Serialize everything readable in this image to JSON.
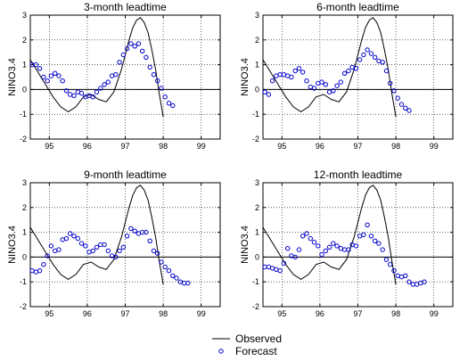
{
  "chart_data": [
    {
      "type": "line",
      "title": "3-month leadtime",
      "ylabel": "NINO3.4",
      "xlim": [
        94.5,
        99.5
      ],
      "ylim": [
        -2,
        3
      ],
      "xticks": [
        95,
        96,
        97,
        98,
        99
      ],
      "yticks": [
        -2,
        -1,
        0,
        1,
        2,
        3
      ],
      "grid": true,
      "series": [
        {
          "name": "Observed",
          "style": "line",
          "x": [
            94.5,
            94.7,
            94.9,
            95.1,
            95.3,
            95.5,
            95.7,
            95.9,
            96.1,
            96.3,
            96.5,
            96.7,
            96.9,
            97.0,
            97.1,
            97.2,
            97.3,
            97.4,
            97.5,
            97.6,
            97.7,
            97.8,
            97.9,
            98.0
          ],
          "y": [
            1.2,
            0.7,
            0.2,
            -0.3,
            -0.7,
            -0.9,
            -0.7,
            -0.3,
            -0.2,
            -0.4,
            -0.5,
            -0.1,
            0.8,
            1.4,
            2.0,
            2.5,
            2.8,
            2.9,
            2.7,
            2.3,
            1.6,
            0.8,
            -0.2,
            -1.1
          ]
        },
        {
          "name": "Forecast",
          "style": "marker",
          "x": [
            94.55,
            94.65,
            94.75,
            94.85,
            94.95,
            95.05,
            95.15,
            95.25,
            95.35,
            95.45,
            95.55,
            95.65,
            95.75,
            95.85,
            95.95,
            96.05,
            96.15,
            96.25,
            96.35,
            96.45,
            96.55,
            96.65,
            96.75,
            96.85,
            96.95,
            97.05,
            97.15,
            97.25,
            97.35,
            97.45,
            97.55,
            97.65,
            97.75,
            97.85,
            97.95,
            98.05,
            98.15,
            98.25
          ],
          "y": [
            1.0,
            1.0,
            0.85,
            0.5,
            0.35,
            0.55,
            0.65,
            0.55,
            0.35,
            -0.05,
            -0.2,
            -0.25,
            -0.1,
            -0.15,
            -0.3,
            -0.25,
            -0.3,
            -0.1,
            0.05,
            0.2,
            0.3,
            0.55,
            0.6,
            1.1,
            1.4,
            1.65,
            1.85,
            1.75,
            1.85,
            1.55,
            1.3,
            0.9,
            0.6,
            0.35,
            0.05,
            -0.3,
            -0.55,
            -0.65
          ]
        }
      ]
    },
    {
      "type": "line",
      "title": "6-month leadtime",
      "ylabel": "NINO3.4",
      "xlim": [
        94.5,
        99.5
      ],
      "ylim": [
        -2,
        3
      ],
      "xticks": [
        95,
        96,
        97,
        98,
        99
      ],
      "yticks": [
        -2,
        -1,
        0,
        1,
        2,
        3
      ],
      "grid": true,
      "series": [
        {
          "name": "Observed",
          "style": "line",
          "x": [
            94.5,
            94.7,
            94.9,
            95.1,
            95.3,
            95.5,
            95.7,
            95.9,
            96.1,
            96.3,
            96.5,
            96.7,
            96.9,
            97.0,
            97.1,
            97.2,
            97.3,
            97.4,
            97.5,
            97.6,
            97.7,
            97.8,
            97.9,
            98.0
          ],
          "y": [
            1.2,
            0.7,
            0.2,
            -0.3,
            -0.7,
            -0.9,
            -0.7,
            -0.3,
            -0.2,
            -0.4,
            -0.5,
            -0.1,
            0.8,
            1.4,
            2.0,
            2.5,
            2.8,
            2.9,
            2.7,
            2.3,
            1.6,
            0.8,
            -0.2,
            -1.1
          ]
        },
        {
          "name": "Forecast",
          "style": "marker",
          "x": [
            94.55,
            94.65,
            94.75,
            94.85,
            94.95,
            95.05,
            95.15,
            95.25,
            95.35,
            95.45,
            95.55,
            95.65,
            95.75,
            95.85,
            95.95,
            96.05,
            96.15,
            96.25,
            96.35,
            96.45,
            96.55,
            96.65,
            96.75,
            96.85,
            96.95,
            97.05,
            97.15,
            97.25,
            97.35,
            97.45,
            97.55,
            97.65,
            97.75,
            97.85,
            97.95,
            98.05,
            98.15,
            98.25,
            98.35
          ],
          "y": [
            -0.1,
            -0.2,
            0.35,
            0.55,
            0.6,
            0.6,
            0.55,
            0.5,
            0.75,
            0.85,
            0.7,
            0.35,
            0.1,
            0.05,
            0.25,
            0.3,
            0.2,
            -0.1,
            -0.05,
            0.15,
            0.3,
            0.65,
            0.75,
            0.9,
            0.85,
            1.2,
            1.4,
            1.6,
            1.45,
            1.3,
            1.15,
            1.1,
            0.75,
            0.25,
            -0.05,
            -0.35,
            -0.6,
            -0.75,
            -0.85
          ]
        }
      ]
    },
    {
      "type": "line",
      "title": "9-month leadtime",
      "ylabel": "NINO3.4",
      "xlim": [
        94.5,
        99.5
      ],
      "ylim": [
        -2,
        3
      ],
      "xticks": [
        95,
        96,
        97,
        98,
        99
      ],
      "yticks": [
        -2,
        -1,
        0,
        1,
        2,
        3
      ],
      "grid": true,
      "series": [
        {
          "name": "Observed",
          "style": "line",
          "x": [
            94.5,
            94.7,
            94.9,
            95.1,
            95.3,
            95.5,
            95.7,
            95.9,
            96.1,
            96.3,
            96.5,
            96.7,
            96.9,
            97.0,
            97.1,
            97.2,
            97.3,
            97.4,
            97.5,
            97.6,
            97.7,
            97.8,
            97.9,
            98.0
          ],
          "y": [
            1.2,
            0.7,
            0.2,
            -0.3,
            -0.7,
            -0.9,
            -0.7,
            -0.3,
            -0.2,
            -0.4,
            -0.5,
            -0.1,
            0.8,
            1.4,
            2.0,
            2.5,
            2.8,
            2.9,
            2.7,
            2.3,
            1.6,
            0.8,
            -0.2,
            -1.1
          ]
        },
        {
          "name": "Forecast",
          "style": "marker",
          "x": [
            94.55,
            94.65,
            94.75,
            94.85,
            94.95,
            95.05,
            95.15,
            95.25,
            95.35,
            95.45,
            95.55,
            95.65,
            95.75,
            95.85,
            95.95,
            96.05,
            96.15,
            96.25,
            96.35,
            96.45,
            96.55,
            96.65,
            96.75,
            96.85,
            96.95,
            97.05,
            97.15,
            97.25,
            97.35,
            97.45,
            97.55,
            97.65,
            97.75,
            97.85,
            97.95,
            98.05,
            98.15,
            98.25,
            98.35,
            98.45,
            98.55,
            98.65
          ],
          "y": [
            -0.55,
            -0.6,
            -0.55,
            -0.3,
            0.05,
            0.45,
            0.25,
            0.3,
            0.7,
            0.75,
            0.95,
            0.85,
            0.75,
            0.55,
            0.45,
            0.2,
            0.25,
            0.4,
            0.5,
            0.5,
            0.25,
            0.05,
            0.0,
            0.25,
            0.4,
            0.85,
            1.15,
            1.05,
            0.95,
            1.0,
            1.0,
            0.65,
            0.25,
            0.15,
            -0.2,
            -0.4,
            -0.55,
            -0.75,
            -0.85,
            -1.0,
            -1.05,
            -1.05
          ]
        }
      ]
    },
    {
      "type": "line",
      "title": "12-month leadtime",
      "ylabel": "NINO3.4",
      "xlim": [
        94.5,
        99.5
      ],
      "ylim": [
        -2,
        3
      ],
      "xticks": [
        95,
        96,
        97,
        98,
        99
      ],
      "yticks": [
        -2,
        -1,
        0,
        1,
        2,
        3
      ],
      "grid": true,
      "series": [
        {
          "name": "Observed",
          "style": "line",
          "x": [
            94.5,
            94.7,
            94.9,
            95.1,
            95.3,
            95.5,
            95.7,
            95.9,
            96.1,
            96.3,
            96.5,
            96.7,
            96.9,
            97.0,
            97.1,
            97.2,
            97.3,
            97.4,
            97.5,
            97.6,
            97.7,
            97.8,
            97.9,
            98.0
          ],
          "y": [
            1.2,
            0.7,
            0.2,
            -0.3,
            -0.7,
            -0.9,
            -0.7,
            -0.3,
            -0.2,
            -0.4,
            -0.5,
            -0.1,
            0.8,
            1.4,
            2.0,
            2.5,
            2.8,
            2.9,
            2.7,
            2.3,
            1.6,
            0.8,
            -0.2,
            -1.1
          ]
        },
        {
          "name": "Forecast",
          "style": "marker",
          "x": [
            94.55,
            94.65,
            94.75,
            94.85,
            94.95,
            95.05,
            95.15,
            95.25,
            95.35,
            95.45,
            95.55,
            95.65,
            95.75,
            95.85,
            95.95,
            96.05,
            96.15,
            96.25,
            96.35,
            96.45,
            96.55,
            96.65,
            96.75,
            96.85,
            96.95,
            97.05,
            97.15,
            97.25,
            97.35,
            97.45,
            97.55,
            97.65,
            97.75,
            97.85,
            97.95,
            98.05,
            98.15,
            98.25,
            98.35,
            98.45,
            98.55,
            98.65,
            98.75
          ],
          "y": [
            -0.4,
            -0.4,
            -0.45,
            -0.5,
            -0.55,
            -0.25,
            0.35,
            0.05,
            0.0,
            0.3,
            0.85,
            0.95,
            0.75,
            0.6,
            0.45,
            0.1,
            0.25,
            0.4,
            0.55,
            0.45,
            0.35,
            0.3,
            0.3,
            0.5,
            0.45,
            0.85,
            0.9,
            1.3,
            0.85,
            0.65,
            0.55,
            0.3,
            -0.1,
            -0.3,
            -0.55,
            -0.75,
            -0.8,
            -0.75,
            -1.0,
            -1.1,
            -1.1,
            -1.05,
            -1.0
          ]
        }
      ]
    }
  ],
  "legend": {
    "observed_label": "Observed",
    "forecast_label": "Forecast"
  },
  "colors": {
    "observed": "#000000",
    "forecast": "#0000cc"
  }
}
